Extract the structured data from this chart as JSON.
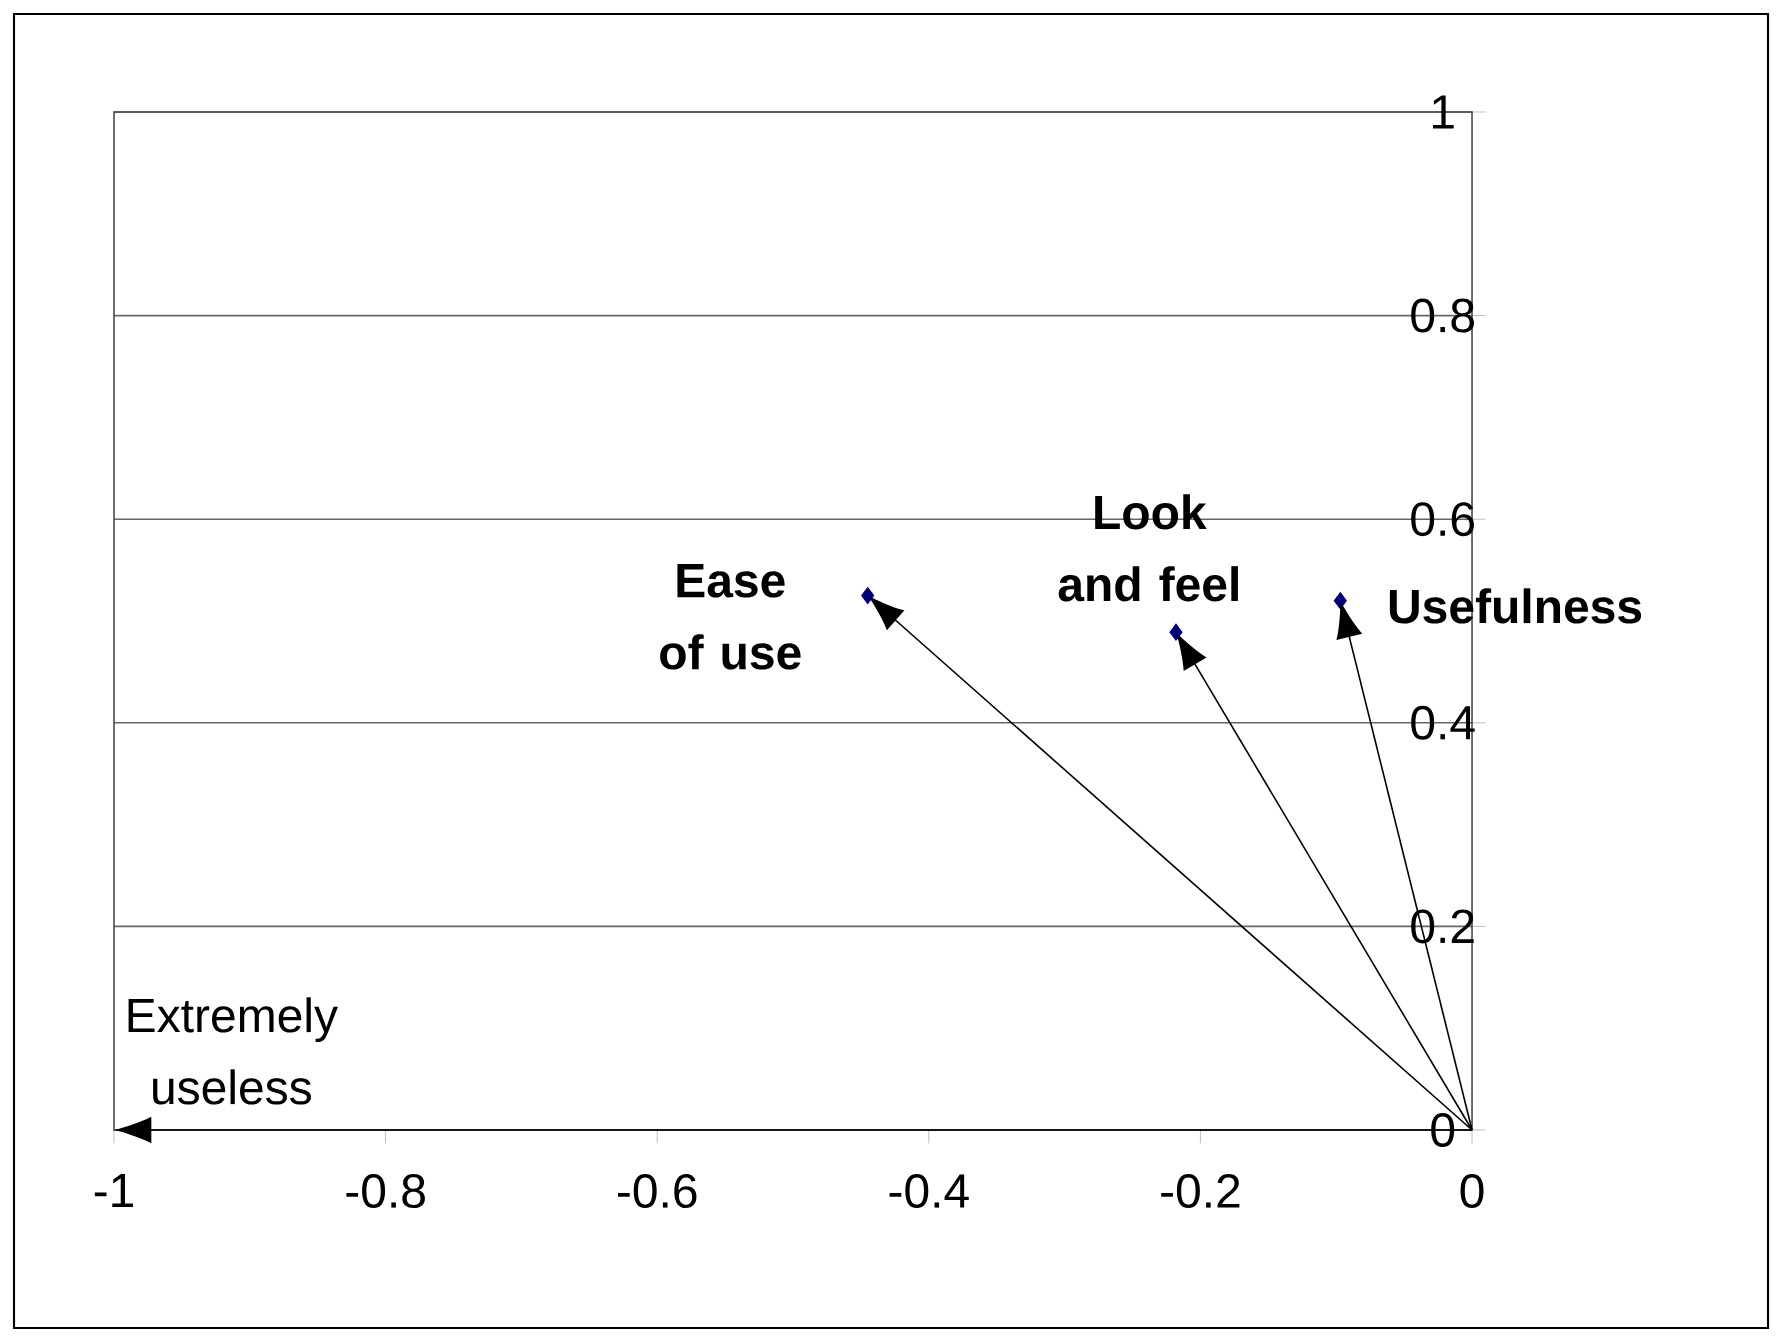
{
  "chart_data": {
    "type": "scatter",
    "x": [
      -0.445,
      -0.218,
      -0.097
    ],
    "values": [
      0.525,
      0.489,
      0.52
    ],
    "color": "#000080",
    "marker": "diamond",
    "annotations": [
      {
        "text": "Ease of use",
        "x": -0.445,
        "y": 0.525
      },
      {
        "text": "Look and feel",
        "x": -0.218,
        "y": 0.489
      },
      {
        "text": "Usefulness",
        "x": -0.097,
        "y": 0.52
      },
      "Extremely useless"
    ],
    "xlim": [
      -1,
      0
    ],
    "ylim": [
      0,
      1
    ],
    "xticks": [
      -1,
      -0.8,
      -0.6,
      -0.4,
      -0.2,
      0
    ],
    "yticks": [
      0,
      0.2,
      0.4,
      0.6,
      0.8,
      1
    ],
    "grid": "y"
  }
}
